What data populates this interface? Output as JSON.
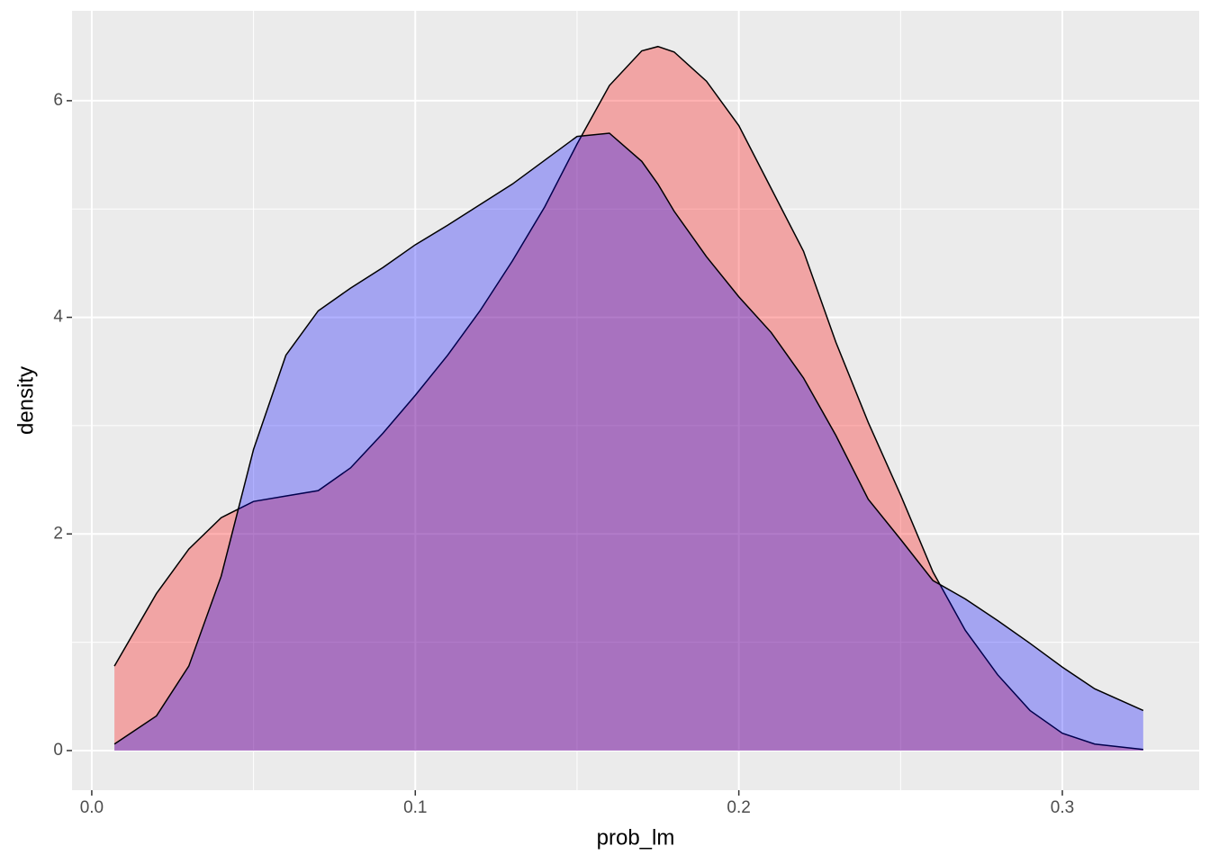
{
  "chart_data": {
    "type": "area",
    "x_label": "prob_lm",
    "y_label": "density",
    "x": [
      0.007,
      0.02,
      0.03,
      0.04,
      0.05,
      0.06,
      0.07,
      0.08,
      0.09,
      0.1,
      0.11,
      0.12,
      0.13,
      0.14,
      0.15,
      0.16,
      0.17,
      0.175,
      0.18,
      0.19,
      0.2,
      0.21,
      0.22,
      0.23,
      0.24,
      0.25,
      0.26,
      0.27,
      0.28,
      0.29,
      0.3,
      0.31,
      0.325
    ],
    "series": [
      {
        "color": "#ff0000",
        "values": [
          0.78,
          1.45,
          1.86,
          2.15,
          2.3,
          2.35,
          2.4,
          2.61,
          2.93,
          3.28,
          3.65,
          4.06,
          4.52,
          5.02,
          5.6,
          6.14,
          6.46,
          6.5,
          6.45,
          6.18,
          5.77,
          5.19,
          4.61,
          3.77,
          3.03,
          2.36,
          1.65,
          1.11,
          0.7,
          0.37,
          0.16,
          0.06,
          0.01
        ]
      },
      {
        "color": "#0000ff",
        "values": [
          0.06,
          0.32,
          0.78,
          1.61,
          2.78,
          3.65,
          4.06,
          4.27,
          4.46,
          4.67,
          4.85,
          5.04,
          5.23,
          5.45,
          5.67,
          5.7,
          5.44,
          5.23,
          4.98,
          4.56,
          4.19,
          3.86,
          3.44,
          2.91,
          2.32,
          1.95,
          1.57,
          1.4,
          1.2,
          0.99,
          0.77,
          0.57,
          0.37
        ]
      }
    ],
    "fill_opacity": 0.3,
    "xlim": [
      -0.0061,
      0.3423
    ],
    "ylim": [
      -0.366,
      6.83
    ],
    "xticks": [
      {
        "value": 0,
        "label": "0.0"
      },
      0.1,
      0.2,
      0.3
    ],
    "yticks": [
      0,
      2,
      4,
      6
    ],
    "grid": true
  }
}
